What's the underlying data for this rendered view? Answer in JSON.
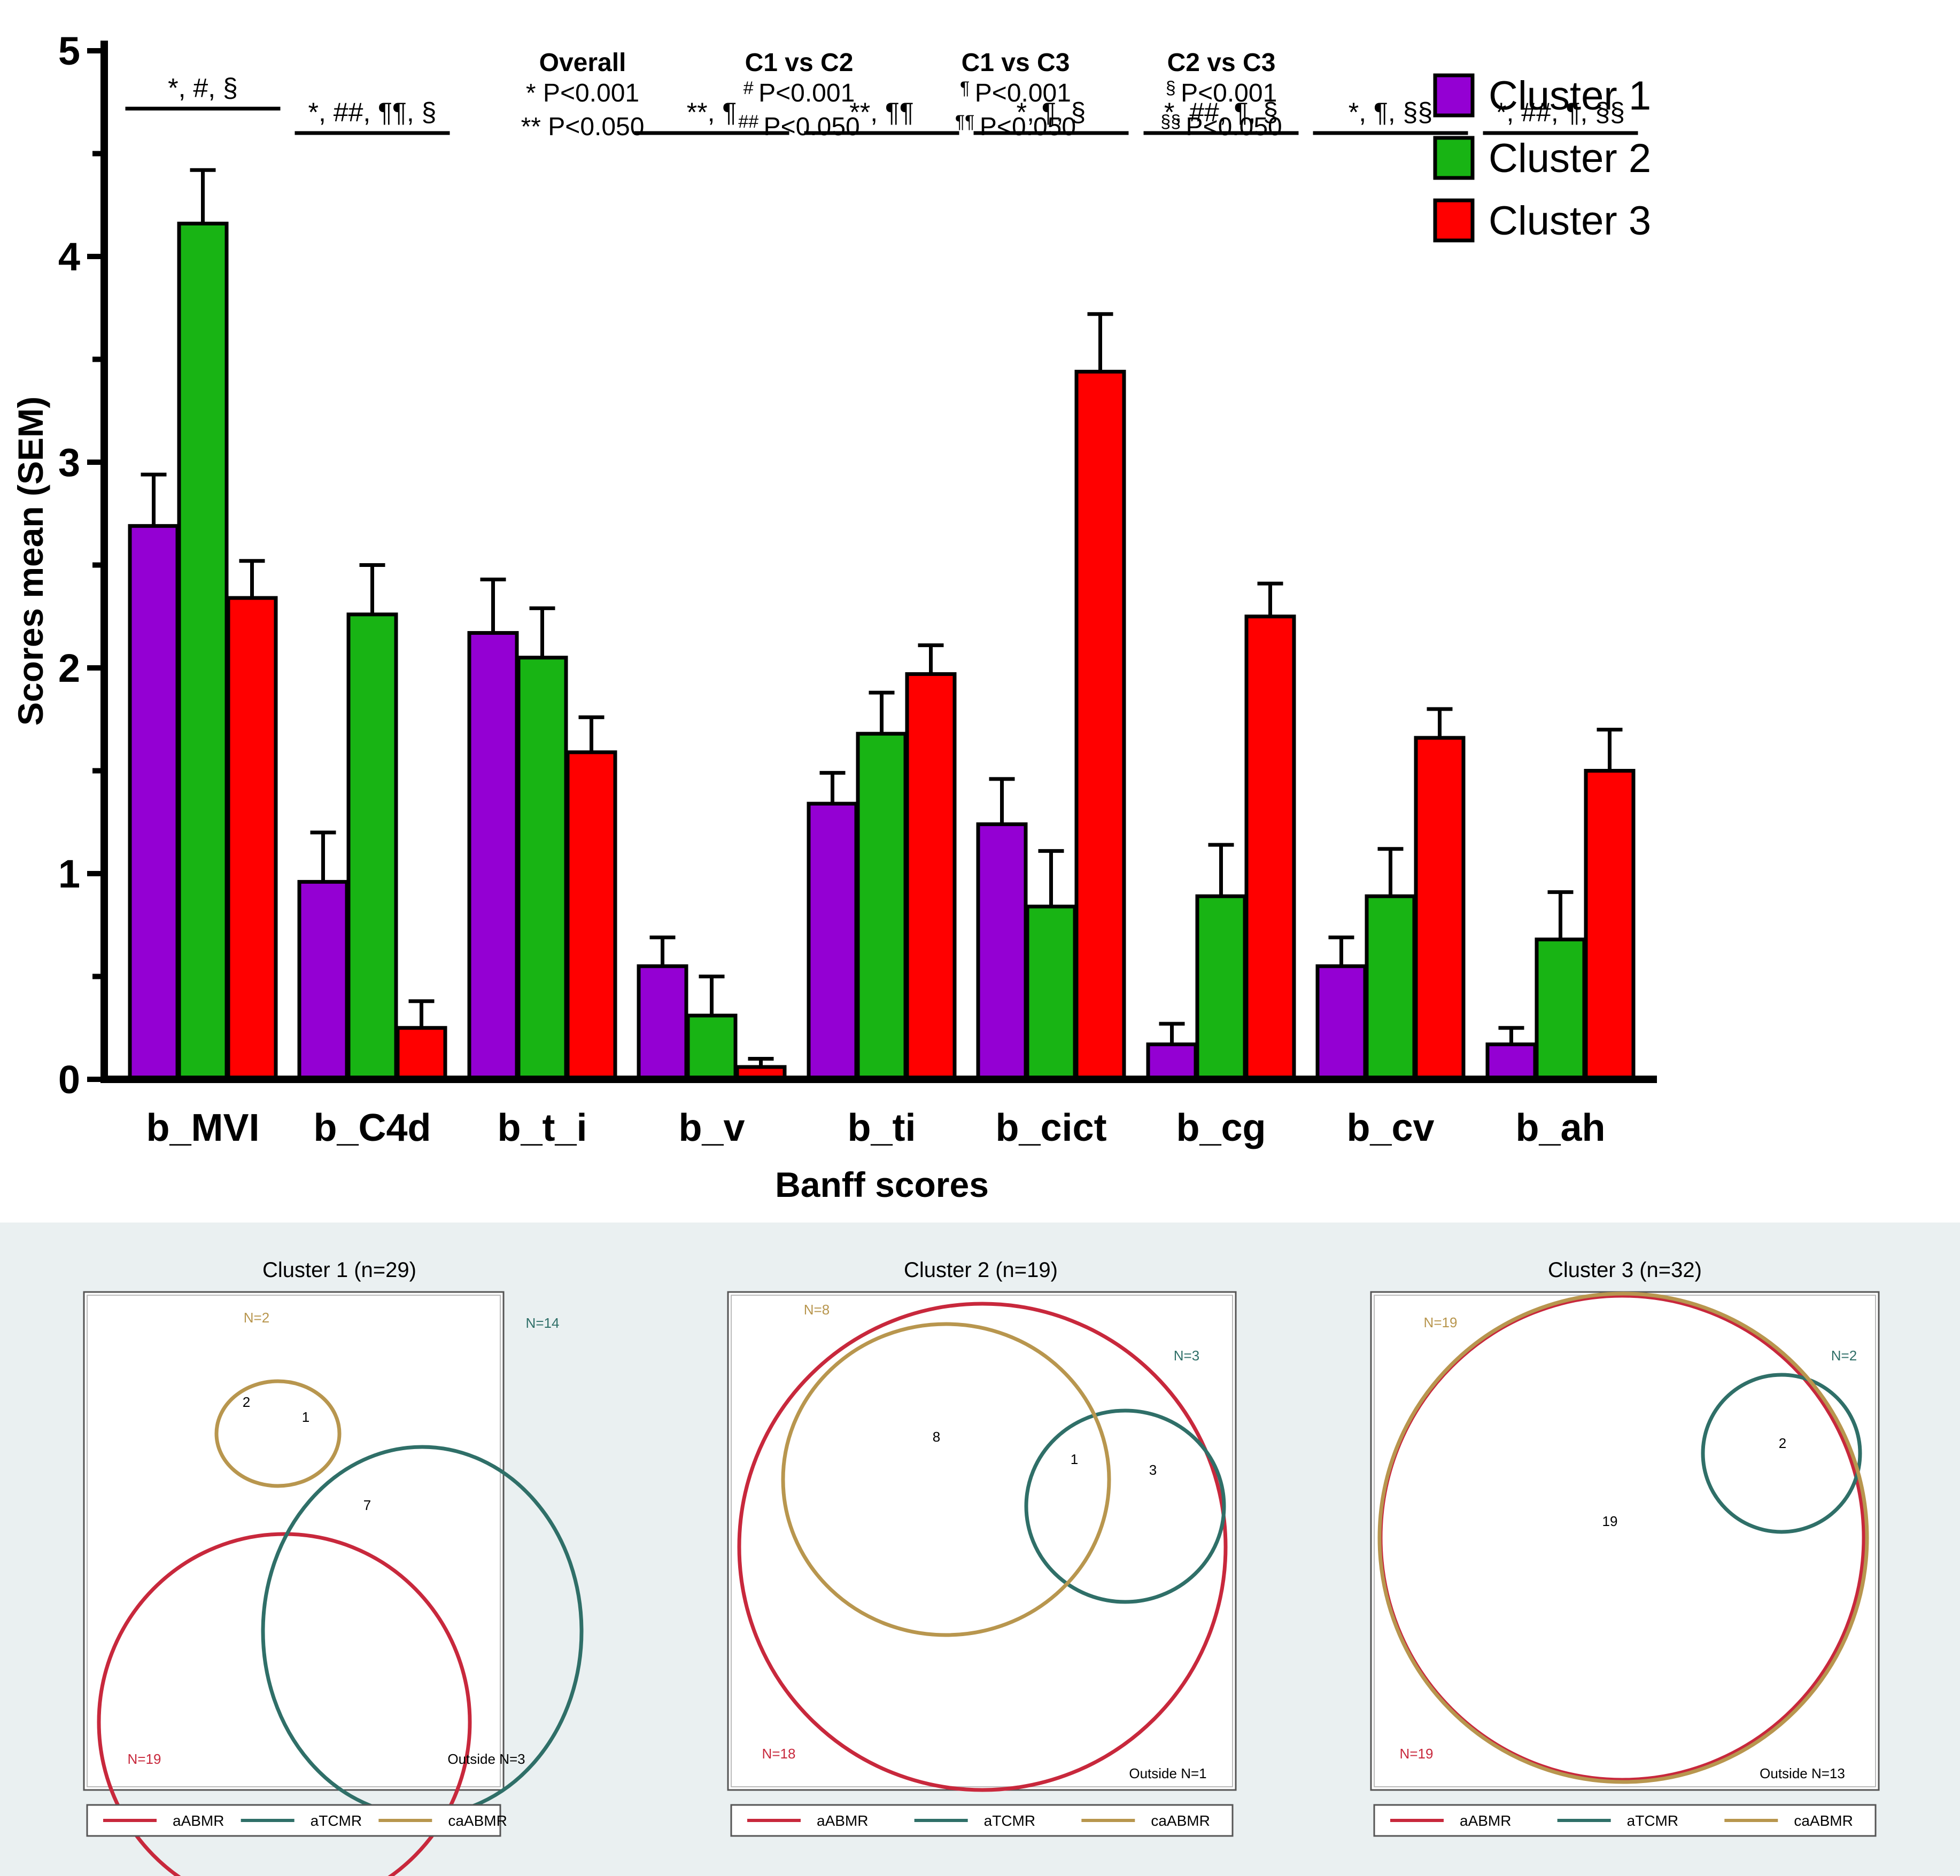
{
  "chart_data": [
    {
      "type": "bar",
      "xlabel": "Banff scores",
      "ylabel": "Scores mean (SEM)",
      "ylim": [
        0,
        5
      ],
      "yticks": [
        "0",
        "1",
        "2",
        "3",
        "4",
        "5"
      ],
      "categories": [
        "b_MVI",
        "b_C4d",
        "b_t_i",
        "b_v",
        "b_ti",
        "b_cict",
        "b_cg",
        "b_cv",
        "b_ah"
      ],
      "series": [
        {
          "name": "Cluster 1",
          "color": "#9400d3",
          "values": [
            2.69,
            0.96,
            2.17,
            0.55,
            1.34,
            1.24,
            0.17,
            0.55,
            0.17
          ],
          "sem": [
            0.25,
            0.24,
            0.26,
            0.14,
            0.15,
            0.22,
            0.1,
            0.14,
            0.08
          ]
        },
        {
          "name": "Cluster 2",
          "color": "#18b414",
          "values": [
            4.16,
            2.26,
            2.05,
            0.31,
            1.68,
            0.84,
            0.89,
            0.89,
            0.68
          ],
          "sem": [
            0.26,
            0.24,
            0.24,
            0.19,
            0.2,
            0.27,
            0.25,
            0.23,
            0.23
          ]
        },
        {
          "name": "Cluster 3",
          "color": "#ff0000",
          "values": [
            2.34,
            0.25,
            1.59,
            0.06,
            1.97,
            3.44,
            2.25,
            1.66,
            1.5
          ],
          "sem": [
            0.18,
            0.13,
            0.17,
            0.04,
            0.14,
            0.28,
            0.16,
            0.14,
            0.2
          ]
        }
      ],
      "significance": [
        {
          "label": "*, #, §"
        },
        {
          "label": "*, ##, ¶¶, §"
        },
        null,
        {
          "label": "**, ¶"
        },
        {
          "label": "**, ¶¶"
        },
        {
          "label": "*, ¶, §"
        },
        {
          "label": "*, ##, ¶, §"
        },
        {
          "label": "*, ¶, §§"
        },
        {
          "label": "*, ##, ¶, §§"
        }
      ],
      "legend_position": "top-right",
      "notes": [
        {
          "title": "Overall",
          "line1_sym": "*",
          "line1": "P<0.001",
          "line2_sym": "**",
          "line2": "P<0.050"
        },
        {
          "title": "C1 vs C2",
          "line1_sym": "#",
          "line1": "P<0.001",
          "line2_sym": "##",
          "line2": "P<0.050"
        },
        {
          "title": "C1 vs C3",
          "line1_sym": "¶",
          "line1": "P<0.001",
          "line2_sym": "¶¶",
          "line2": "P<0.050"
        },
        {
          "title": "C2 vs C3",
          "line1_sym": "§",
          "line1": "P<0.001",
          "line2_sym": "§§",
          "line2": "P<0.050"
        }
      ]
    }
  ],
  "venn": {
    "legend": [
      {
        "label": "aABMR",
        "color": "#c8283c"
      },
      {
        "label": "aTCMR",
        "color": "#2f6f68"
      },
      {
        "label": "caABMR",
        "color": "#b8964e"
      }
    ],
    "panels": [
      {
        "title": "Cluster 1 (n=29)",
        "circles": [
          {
            "set": "aABMR",
            "label": "N=19"
          },
          {
            "set": "aTCMR",
            "label": "N=14"
          },
          {
            "set": "caABMR",
            "label": "N=2"
          }
        ],
        "regions": [
          "2",
          "1",
          "7"
        ],
        "outside": "Outside N=3"
      },
      {
        "title": "Cluster 2 (n=19)",
        "circles": [
          {
            "set": "aABMR",
            "label": "N=18"
          },
          {
            "set": "aTCMR",
            "label": "N=3"
          },
          {
            "set": "caABMR",
            "label": "N=8"
          }
        ],
        "regions": [
          "8",
          "1",
          "3"
        ],
        "outside": "Outside N=1"
      },
      {
        "title": "Cluster 3 (n=32)",
        "circles": [
          {
            "set": "aABMR",
            "label": "N=19"
          },
          {
            "set": "aTCMR",
            "label": "N=2"
          },
          {
            "set": "caABMR",
            "label": "N=19"
          }
        ],
        "regions": [
          "19",
          "2"
        ],
        "outside": "Outside N=13"
      }
    ]
  }
}
